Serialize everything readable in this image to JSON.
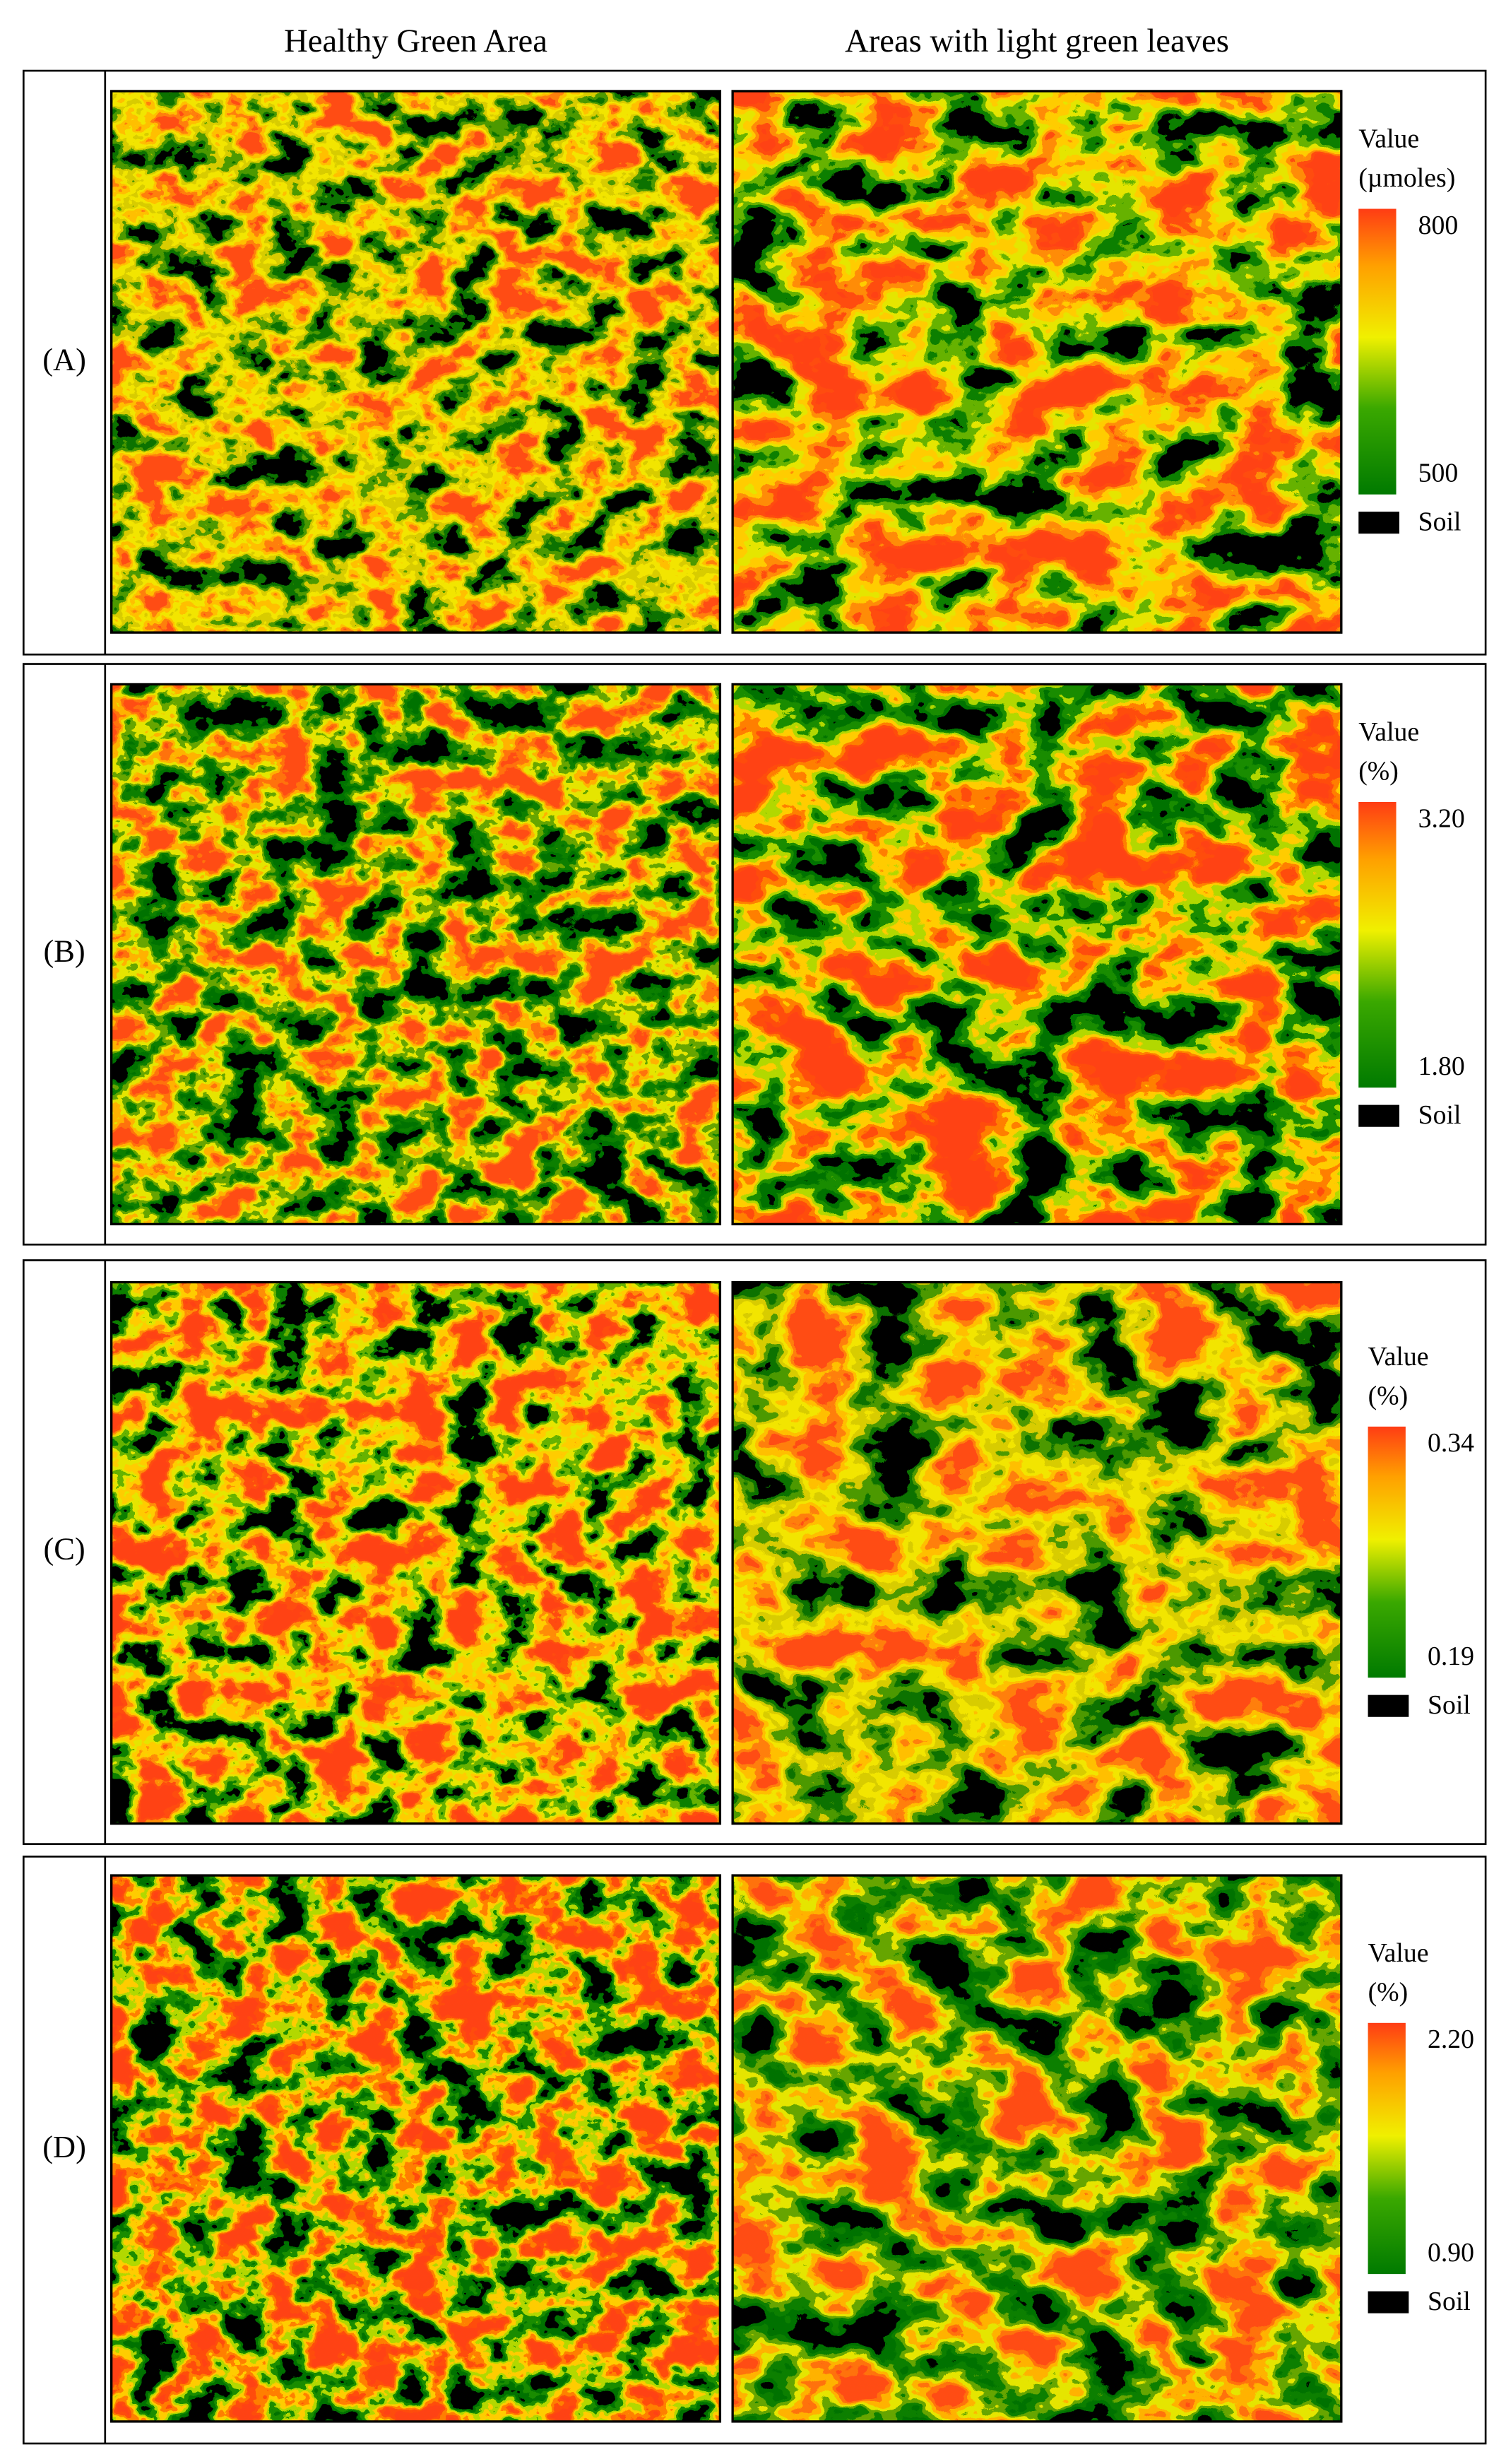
{
  "header": {
    "columns": [
      "Healthy Green Area",
      "Areas with light green leaves"
    ]
  },
  "rows": [
    {
      "label": "(A)",
      "legend": {
        "title": "Value",
        "unit": "(µmoles)",
        "max": "800",
        "min": "500",
        "soil": "Soil"
      }
    },
    {
      "label": "(B)",
      "legend": {
        "title": "Value",
        "unit": "(%)",
        "max": "3.20",
        "min": "1.80",
        "soil": "Soil"
      }
    },
    {
      "label": "(C)",
      "legend": {
        "title": "Value",
        "unit": "(%)",
        "max": "0.34",
        "min": "0.19",
        "soil": "Soil"
      }
    },
    {
      "label": "(D)",
      "legend": {
        "title": "Value",
        "unit": "(%)",
        "max": "2.20",
        "min": "0.90",
        "soil": "Soil"
      }
    }
  ]
}
